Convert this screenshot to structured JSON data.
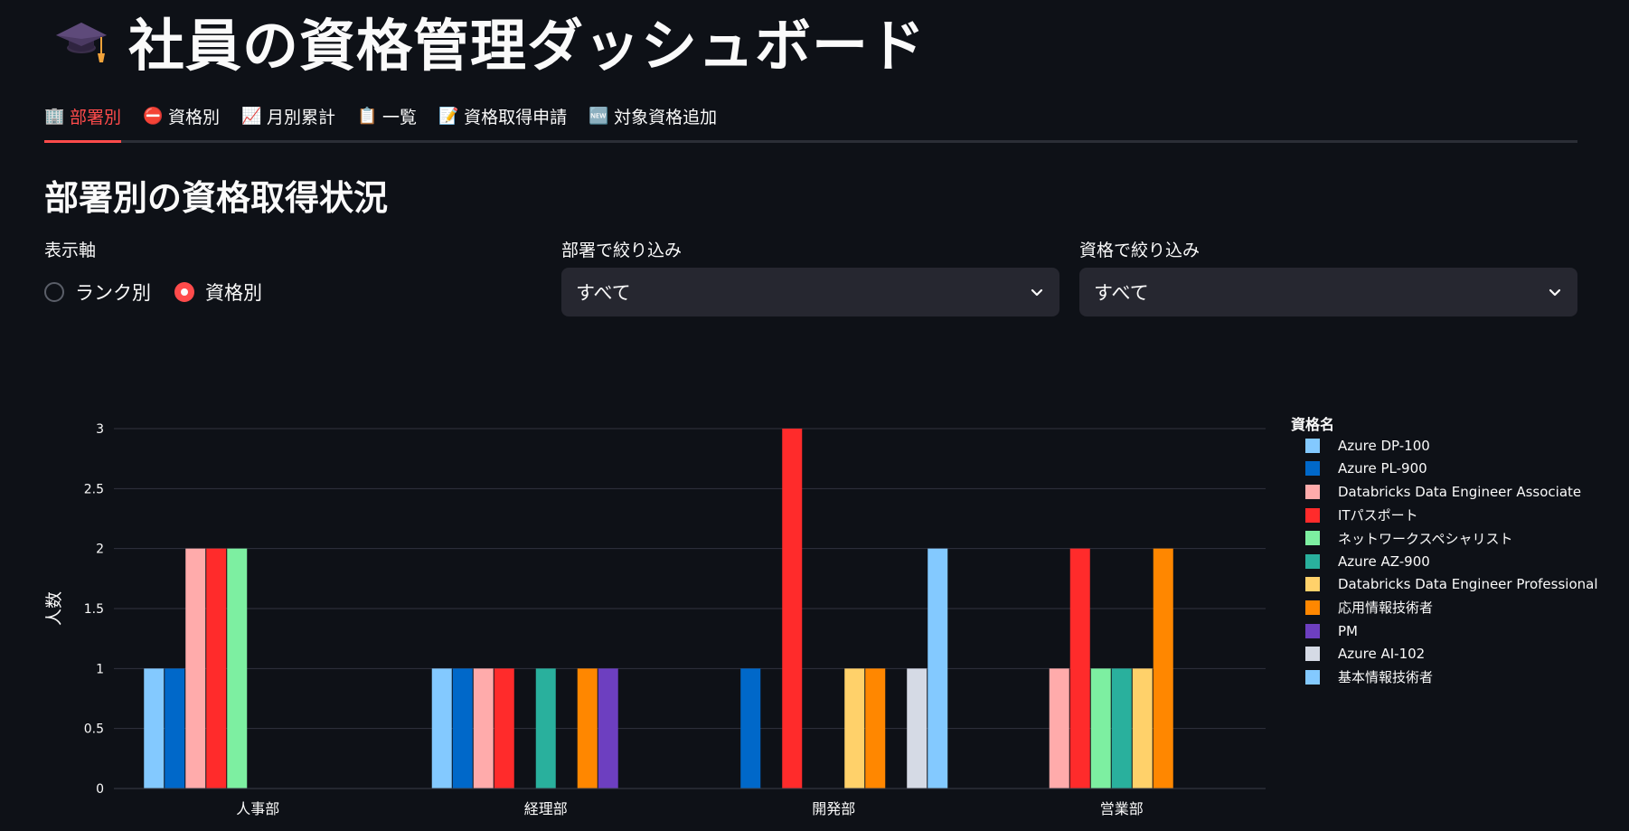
{
  "title": {
    "text": "社員の資格管理ダッシュボード",
    "icon": "graduation-cap-icon"
  },
  "tabs": [
    {
      "label": "部署別",
      "icon": "office-building-icon",
      "glyph": "🏢",
      "active": true
    },
    {
      "label": "資格別",
      "icon": "no-entry-icon",
      "glyph": "⛔",
      "active": false
    },
    {
      "label": "月別累計",
      "icon": "chart-increasing-icon",
      "glyph": "📈",
      "active": false
    },
    {
      "label": "一覧",
      "icon": "clipboard-icon",
      "glyph": "📋",
      "active": false
    },
    {
      "label": "資格取得申請",
      "icon": "memo-icon",
      "glyph": "📝",
      "active": false
    },
    {
      "label": "対象資格追加",
      "icon": "new-button-icon",
      "glyph": "🆕",
      "active": false
    }
  ],
  "section": {
    "heading": "部署別の資格取得状況"
  },
  "controls": {
    "axis_label": "表示軸",
    "axis_options": [
      {
        "label": "ランク別",
        "checked": false
      },
      {
        "label": "資格別",
        "checked": true
      }
    ],
    "dept_filter_label": "部署で絞り込み",
    "dept_filter_value": "すべて",
    "cert_filter_label": "資格で絞り込み",
    "cert_filter_value": "すべて"
  },
  "chart_data": {
    "type": "bar",
    "ylabel": "人数",
    "xlabel": "",
    "ylim": [
      0,
      3
    ],
    "yticks": [
      "0",
      "0.5",
      "1",
      "1.5",
      "2",
      "2.5",
      "3"
    ],
    "categories": [
      "人事部",
      "経理部",
      "開発部",
      "営業部"
    ],
    "legend_title": "資格名",
    "legend_position": "right",
    "grid": true,
    "series": [
      {
        "name": "Azure DP-100",
        "color": "#83c9ff",
        "values": [
          1,
          1,
          0,
          0
        ]
      },
      {
        "name": "Azure PL-900",
        "color": "#0068c9",
        "values": [
          1,
          1,
          1,
          0
        ]
      },
      {
        "name": "Databricks Data Engineer Associate",
        "color": "#ffabab",
        "values": [
          2,
          1,
          0,
          1
        ]
      },
      {
        "name": "ITパスポート",
        "color": "#ff2b2b",
        "values": [
          2,
          1,
          3,
          2
        ]
      },
      {
        "name": "ネットワークスペシャリスト",
        "color": "#7defa1",
        "values": [
          2,
          0,
          0,
          1
        ]
      },
      {
        "name": "Azure AZ-900",
        "color": "#29b09d",
        "values": [
          0,
          1,
          0,
          1
        ]
      },
      {
        "name": "Databricks Data Engineer Professional",
        "color": "#ffd16a",
        "values": [
          0,
          0,
          1,
          1
        ]
      },
      {
        "name": "応用情報技術者",
        "color": "#ff8700",
        "values": [
          0,
          1,
          1,
          2
        ]
      },
      {
        "name": "PM",
        "color": "#6d3fc0",
        "values": [
          0,
          1,
          0,
          0
        ]
      },
      {
        "name": "Azure AI-102",
        "color": "#d5dae5",
        "values": [
          0,
          0,
          1,
          0
        ]
      },
      {
        "name": "基本情報技術者",
        "color": "#83c9ff",
        "values": [
          0,
          0,
          2,
          0
        ]
      }
    ]
  }
}
